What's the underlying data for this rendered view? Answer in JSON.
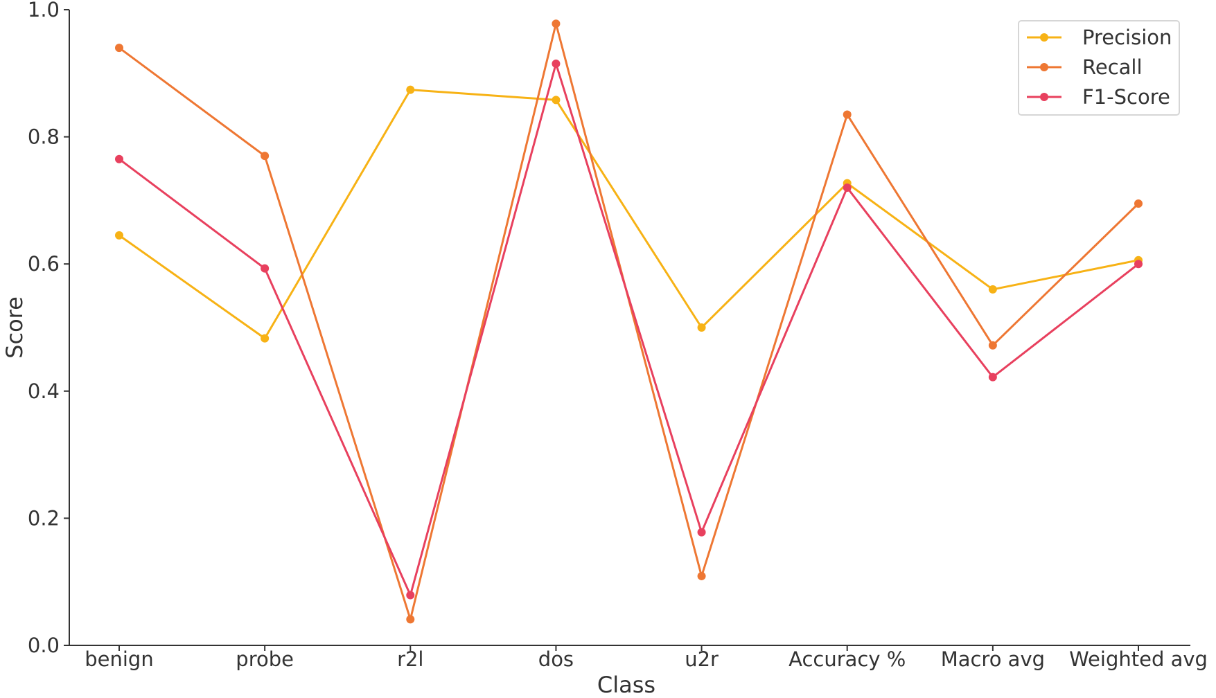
{
  "chart_data": {
    "type": "line",
    "title": "",
    "xlabel": "Class",
    "ylabel": "Score",
    "ylim": [
      0,
      1.0
    ],
    "yticks": [
      "0.0",
      "0.2",
      "0.4",
      "0.6",
      "0.8",
      "1.0"
    ],
    "grid": false,
    "legend_position": "top-right",
    "categories": [
      "benign",
      "probe",
      "r2l",
      "dos",
      "u2r",
      "Accuracy %",
      "Macro avg",
      "Weighted avg"
    ],
    "series": [
      {
        "name": "Precision",
        "color": "#F7B215",
        "values": [
          0.645,
          0.483,
          0.874,
          0.858,
          0.5,
          0.727,
          0.56,
          0.606
        ]
      },
      {
        "name": "Recall",
        "color": "#EE7733",
        "values": [
          0.94,
          0.77,
          0.041,
          0.978,
          0.109,
          0.835,
          0.472,
          0.695
        ]
      },
      {
        "name": "F1-Score",
        "color": "#E8405E",
        "values": [
          0.765,
          0.593,
          0.079,
          0.915,
          0.178,
          0.72,
          0.422,
          0.6
        ]
      }
    ]
  }
}
